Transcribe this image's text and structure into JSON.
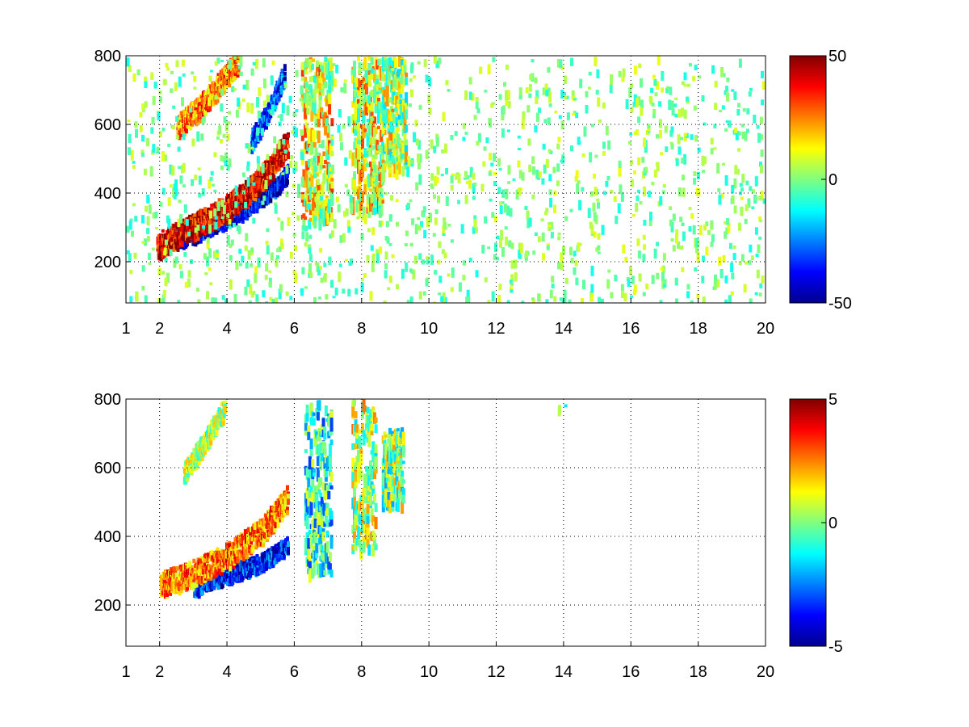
{
  "figure": {
    "background": "#ffffff"
  },
  "chart_data": [
    {
      "type": "heatmap",
      "title": "",
      "xlabel": "",
      "ylabel": "",
      "xlim": [
        1,
        20
      ],
      "ylim": [
        80,
        800
      ],
      "xticks": [
        1,
        2,
        4,
        6,
        8,
        10,
        12,
        14,
        16,
        18,
        20
      ],
      "yticks": [
        200,
        400,
        600,
        800
      ],
      "xtick_labels": [
        "1",
        "2",
        "4",
        "6",
        "8",
        "10",
        "12",
        "14",
        "16",
        "18",
        "20"
      ],
      "ytick_labels": [
        "200",
        "400",
        "600",
        "800"
      ],
      "grid": "dotted",
      "colormap": "jet",
      "colorbar": {
        "min": -50,
        "max": 50,
        "ticks": [
          -50,
          0,
          50
        ],
        "tick_labels": [
          "-50",
          "0",
          "50"
        ]
      },
      "features": [
        {
          "kind": "curve-band",
          "label": "lower branch, negative values",
          "x": [
            2.5,
            3.5,
            4.5,
            5.5,
            5.8
          ],
          "y": [
            270,
            310,
            360,
            430,
            470
          ],
          "value": -40,
          "width": 12
        },
        {
          "kind": "curve-band",
          "label": "lower branch, positive values",
          "x": [
            1.9,
            2.5,
            3.5,
            4.5,
            5.3,
            5.8
          ],
          "y": [
            250,
            285,
            335,
            400,
            480,
            560
          ],
          "value": 40,
          "width": 18
        },
        {
          "kind": "curve-band",
          "label": "upper branch",
          "x": [
            2.5,
            3.2,
            3.8,
            4.3
          ],
          "y": [
            600,
            660,
            730,
            790
          ],
          "value": 25,
          "width": 16
        },
        {
          "kind": "curve-band",
          "label": "blue ridge",
          "x": [
            4.7,
            5.2,
            5.7
          ],
          "y": [
            560,
            640,
            760
          ],
          "value": -30,
          "width": 14
        },
        {
          "kind": "vertical-band",
          "x": [
            6.2,
            7.1
          ],
          "y": [
            320,
            800
          ],
          "value": 12
        },
        {
          "kind": "vertical-band",
          "x": [
            7.7,
            8.6
          ],
          "y": [
            360,
            800
          ],
          "value": 10
        },
        {
          "kind": "vertical-band",
          "x": [
            8.6,
            9.3
          ],
          "y": [
            480,
            800
          ],
          "value": 5
        },
        {
          "kind": "noise",
          "x": [
            1,
            20
          ],
          "y": [
            80,
            800
          ],
          "value": 0,
          "note": "sparse green/cyan/yellow cells"
        }
      ]
    },
    {
      "type": "heatmap",
      "title": "",
      "xlabel": "",
      "ylabel": "",
      "xlim": [
        1,
        20
      ],
      "ylim": [
        80,
        800
      ],
      "xticks": [
        1,
        2,
        4,
        6,
        8,
        10,
        12,
        14,
        16,
        18,
        20
      ],
      "yticks": [
        200,
        400,
        600,
        800
      ],
      "xtick_labels": [
        "1",
        "2",
        "4",
        "6",
        "8",
        "10",
        "12",
        "14",
        "16",
        "18",
        "20"
      ],
      "ytick_labels": [
        "200",
        "400",
        "600",
        "800"
      ],
      "grid": "dotted",
      "colormap": "jet",
      "colorbar": {
        "min": -5,
        "max": 5,
        "ticks": [
          -5,
          0,
          5
        ],
        "tick_labels": [
          "-5",
          "0",
          "5"
        ]
      },
      "features": [
        {
          "kind": "curve-band",
          "label": "lower branch, negative values",
          "x": [
            3.0,
            4.0,
            5.0,
            5.8
          ],
          "y": [
            260,
            295,
            330,
            380
          ],
          "value": -3.5,
          "width": 12
        },
        {
          "kind": "curve-band",
          "label": "lower branch, positive values",
          "x": [
            2.0,
            3.0,
            4.0,
            5.0,
            5.8
          ],
          "y": [
            265,
            300,
            350,
            420,
            520
          ],
          "value": 2.5,
          "width": 18
        },
        {
          "kind": "curve-band",
          "label": "upper branch",
          "x": [
            2.7,
            3.3,
            3.9
          ],
          "y": [
            590,
            680,
            780
          ],
          "value": 0.5,
          "width": 14
        },
        {
          "kind": "vertical-band",
          "x": [
            6.3,
            7.1
          ],
          "y": [
            300,
            800
          ],
          "value": -1
        },
        {
          "kind": "vertical-band",
          "x": [
            7.7,
            8.4
          ],
          "y": [
            370,
            800
          ],
          "value": 0.5
        },
        {
          "kind": "vertical-band",
          "x": [
            8.6,
            9.2
          ],
          "y": [
            500,
            720
          ],
          "value": 0
        },
        {
          "kind": "noise",
          "x": [
            13.8,
            14.1
          ],
          "y": [
            765,
            785
          ],
          "value": -0.5
        }
      ]
    }
  ]
}
